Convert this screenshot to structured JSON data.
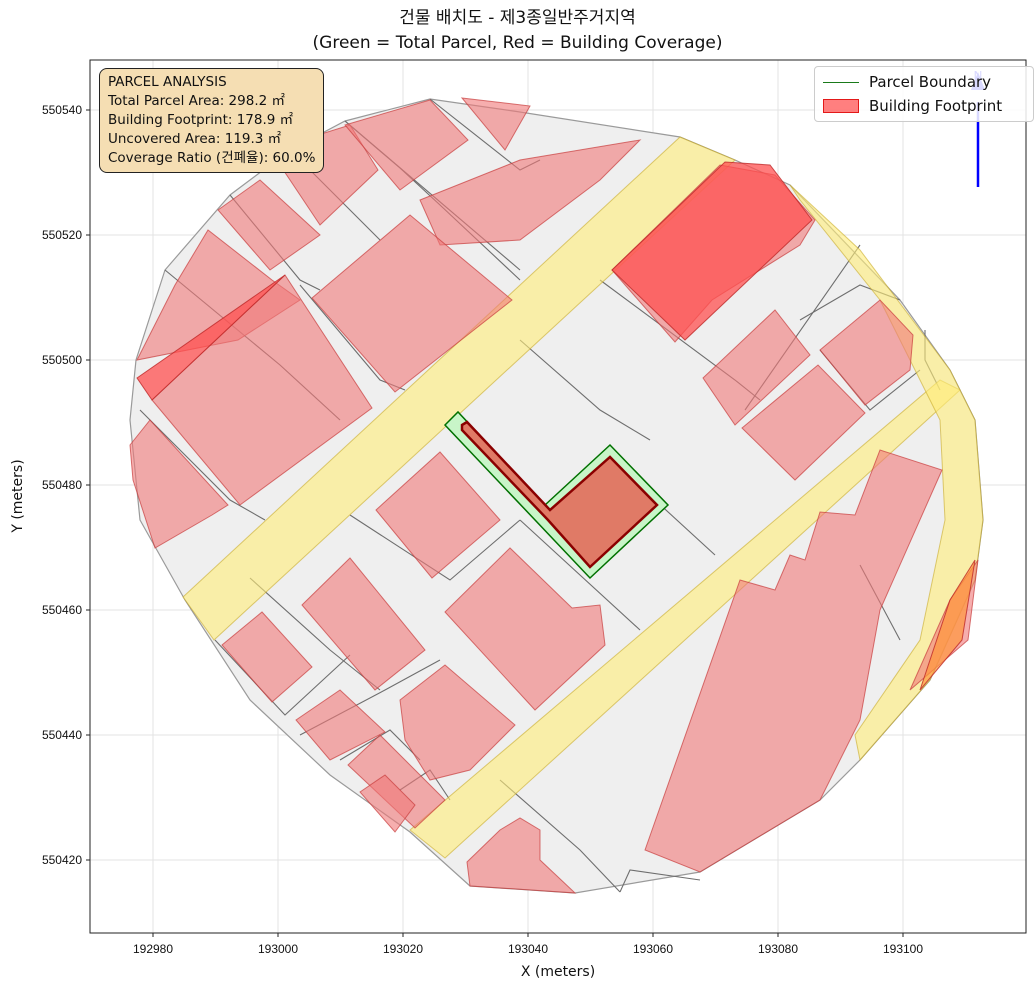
{
  "title": {
    "line1": "건물 배치도 - 제3종일반주거지역",
    "line2": "(Green = Total Parcel, Red = Building Coverage)"
  },
  "axes": {
    "xlabel": "X (meters)",
    "ylabel": "Y (meters)",
    "xlim": [
      192970,
      193120
    ],
    "ylim": [
      550408,
      550548
    ],
    "xticks": [
      "192980",
      "193000",
      "193020",
      "193040",
      "193060",
      "193080",
      "193100"
    ],
    "yticks": [
      "550420",
      "550440",
      "550460",
      "550480",
      "550500",
      "550520",
      "550540"
    ],
    "grid": true
  },
  "legend": {
    "placement": "top-right",
    "parcel_label": "Parcel Boundary",
    "building_label": "Building Footprint"
  },
  "stats": {
    "heading": "PARCEL ANALYSIS",
    "total": "Total Parcel Area: 298.2 ㎡",
    "footprint": "Building Footprint: 178.9 ㎡",
    "uncovered": "Uncovered Area: 119.3 ㎡",
    "ratio": "Coverage Ratio (건폐율): 60.0%"
  },
  "colors": {
    "parcel_fill": "#c8f5c8",
    "parcel_edge": "#007000",
    "building_fill": "#e07a66",
    "building_edge": "#8b0000",
    "neighbor_building": "#f08080",
    "road": "#fff0a0",
    "lot": "#efefef",
    "north_arrow": "#0000ff"
  },
  "north_arrow": {
    "label": "N"
  }
}
